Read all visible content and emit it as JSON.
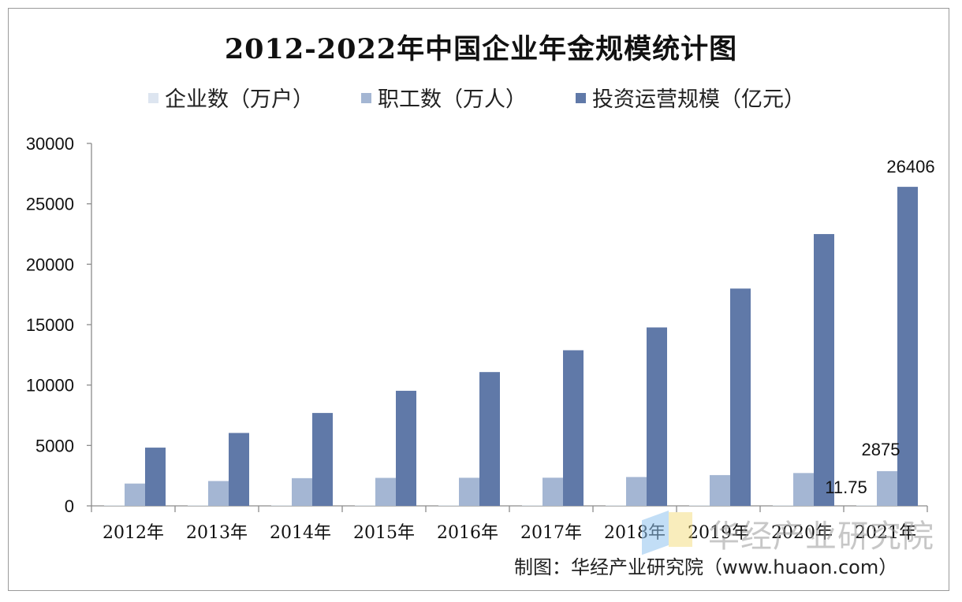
{
  "chart_data": {
    "type": "bar",
    "title": "2012-2022年中国企业年金规模统计图",
    "categories": [
      "2012年",
      "2013年",
      "2014年",
      "2015年",
      "2016年",
      "2017年",
      "2018年",
      "2019年",
      "2020年",
      "2021年"
    ],
    "series": [
      {
        "name": "企业数（万户）",
        "color": "#dde5f0",
        "values": [
          5.47,
          6.61,
          7.33,
          7.55,
          7.63,
          8.04,
          8.74,
          9.6,
          10.52,
          11.75
        ]
      },
      {
        "name": "职工数（万人）",
        "color": "#a4b6d3",
        "values": [
          1847,
          2056,
          2293,
          2316,
          2325,
          2331,
          2388,
          2548,
          2718,
          2875
        ]
      },
      {
        "name": "投资运营规模（亿元）",
        "color": "#6079a8",
        "values": [
          4821,
          6035,
          7689,
          9526,
          11075,
          12880,
          14770,
          17985,
          22497,
          26406
        ]
      }
    ],
    "data_labels": [
      {
        "series": 0,
        "category": "2021年",
        "text": "11.75"
      },
      {
        "series": 1,
        "category": "2021年",
        "text": "2875"
      },
      {
        "series": 2,
        "category": "2021年",
        "text": "26406"
      }
    ],
    "ylim": [
      0,
      30000
    ],
    "yticks": [
      0,
      5000,
      10000,
      15000,
      20000,
      25000,
      30000
    ],
    "legend_position": "top",
    "grid": false
  },
  "footer": {
    "credit": "制图：华经产业研究院（www.huaon.com）"
  },
  "watermark": {
    "text": "华经产业研究院"
  }
}
